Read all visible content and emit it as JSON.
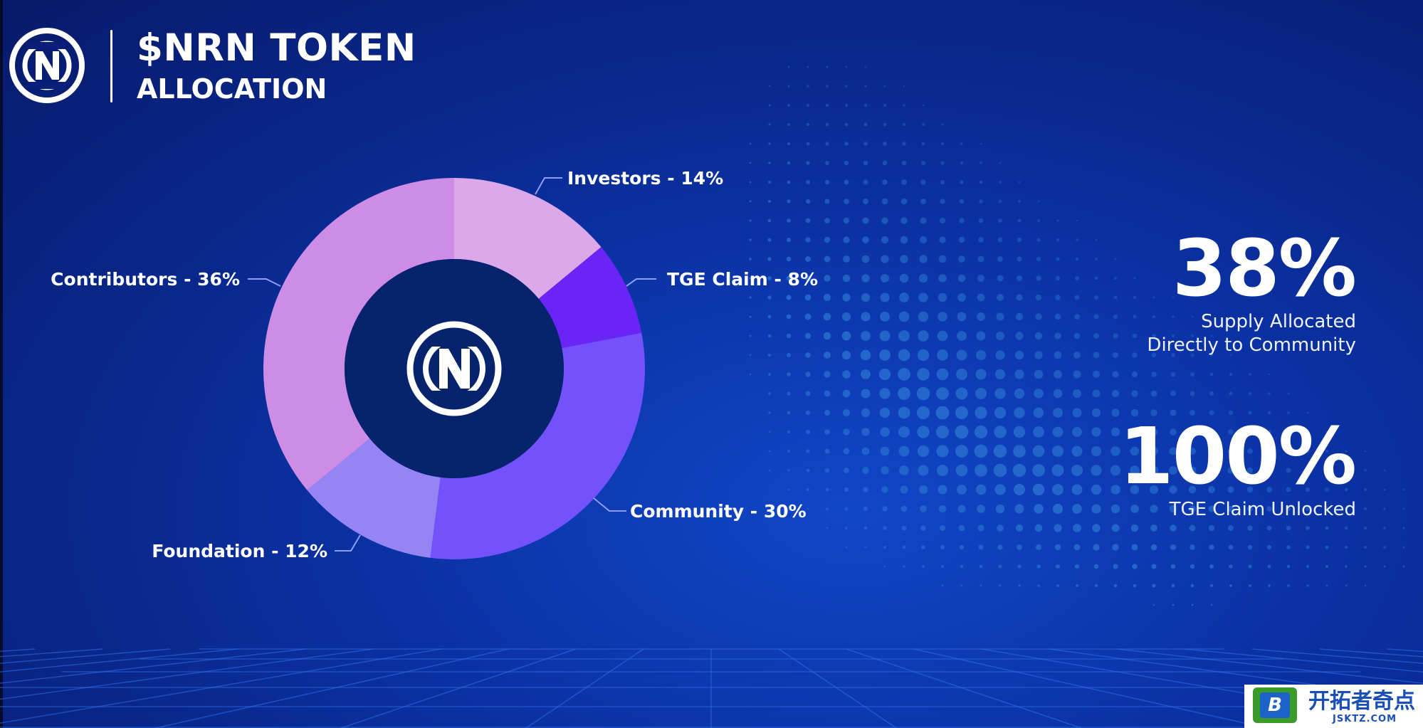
{
  "header": {
    "title": "$NRN TOKEN",
    "subtitle": "ALLOCATION"
  },
  "icons": {
    "brand_logo": "nrn-logo-icon"
  },
  "colors": {
    "background": "#0a2f9e",
    "investors": "#dba8ea",
    "tge_claim": "#6a24f5",
    "community": "#7352fb",
    "foundation": "#9684f4",
    "contributors": "#cd8de7",
    "center": "#07236e"
  },
  "chart_data": {
    "type": "pie",
    "title": "$NRN TOKEN ALLOCATION",
    "slices": [
      {
        "name": "Investors",
        "value": 14,
        "label": "Investors - 14%"
      },
      {
        "name": "TGE Claim",
        "value": 8,
        "label": "TGE Claim - 8%"
      },
      {
        "name": "Community",
        "value": 30,
        "label": "Community - 30%"
      },
      {
        "name": "Foundation",
        "value": 12,
        "label": "Foundation - 12%"
      },
      {
        "name": "Contributors",
        "value": 36,
        "label": "Contributors - 36%"
      }
    ]
  },
  "stats": [
    {
      "value": "38%",
      "caption_lines": [
        "Supply Allocated",
        "Directly to Community"
      ]
    },
    {
      "value": "100%",
      "caption_lines": [
        "TGE Claim Unlocked"
      ]
    }
  ],
  "watermark": {
    "badge": "B",
    "text": "开拓者奇点",
    "sub": "JSKTZ.COM"
  }
}
